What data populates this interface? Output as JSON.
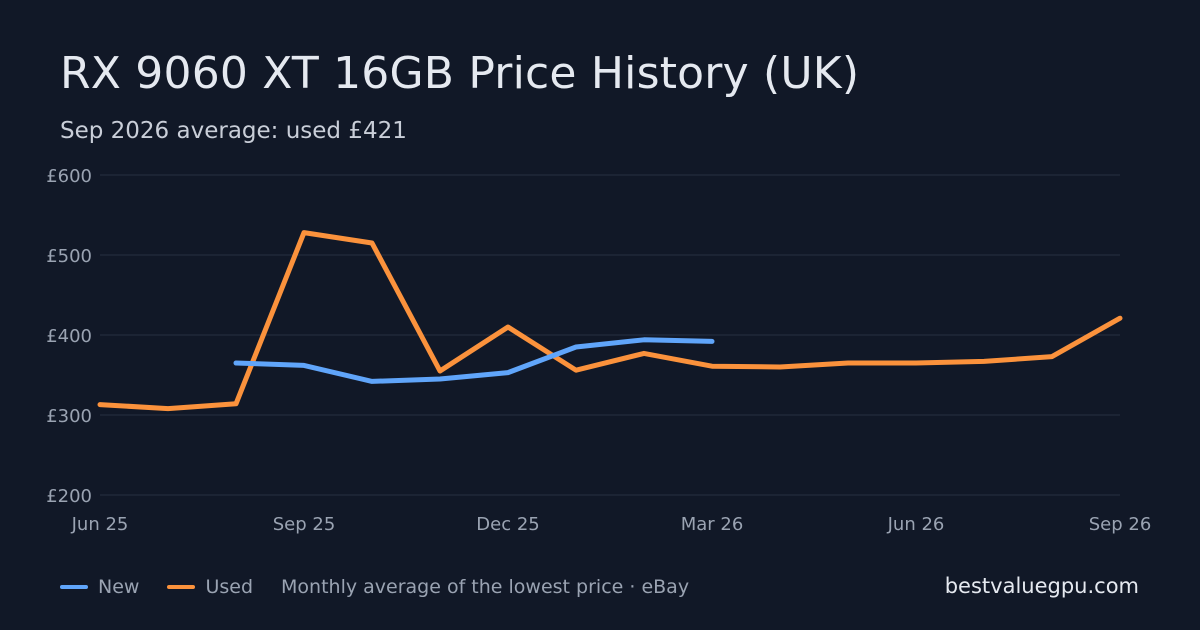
{
  "chart_data": {
    "type": "line",
    "title": "RX 9060 XT 16GB Price History (UK)",
    "subtitle": "Sep 2026 average: used £421",
    "ylim": [
      200,
      600
    ],
    "yticks": [
      {
        "value": 600,
        "label": "£600"
      },
      {
        "value": 500,
        "label": "£500"
      },
      {
        "value": 400,
        "label": "£400"
      },
      {
        "value": 300,
        "label": "£300"
      },
      {
        "value": 200,
        "label": "£200"
      }
    ],
    "x": [
      "Jun 25",
      "Jul 25",
      "Aug 25",
      "Sep 25",
      "Oct 25",
      "Nov 25",
      "Dec 25",
      "Jan 26",
      "Feb 26",
      "Mar 26",
      "Apr 26",
      "May 26",
      "Jun 26",
      "Jul 26",
      "Aug 26",
      "Sep 26"
    ],
    "xticks": [
      {
        "index": 0,
        "label": "Jun 25"
      },
      {
        "index": 3,
        "label": "Sep 25"
      },
      {
        "index": 6,
        "label": "Dec 25"
      },
      {
        "index": 9,
        "label": "Mar 26"
      },
      {
        "index": 12,
        "label": "Jun 26"
      },
      {
        "index": 15,
        "label": "Sep 26"
      }
    ],
    "series": [
      {
        "name": "New",
        "color": "#60a5fa",
        "values": [
          null,
          null,
          365,
          362,
          342,
          345,
          353,
          385,
          394,
          392,
          null,
          null,
          null,
          null,
          null,
          null
        ]
      },
      {
        "name": "Used",
        "color": "#fb923c",
        "values": [
          313,
          308,
          314,
          528,
          515,
          355,
          410,
          356,
          377,
          361,
          360,
          365,
          365,
          367,
          373,
          421
        ]
      }
    ],
    "grid": true,
    "legend": "bottom-left"
  },
  "legend": {
    "new_label": "New",
    "used_label": "Used",
    "note": "Monthly average of the lowest price · eBay"
  },
  "brand": "bestvaluegpu.com",
  "colors": {
    "background": "#111827",
    "grid": "#273042",
    "new": "#60a5fa",
    "used": "#fb923c"
  }
}
